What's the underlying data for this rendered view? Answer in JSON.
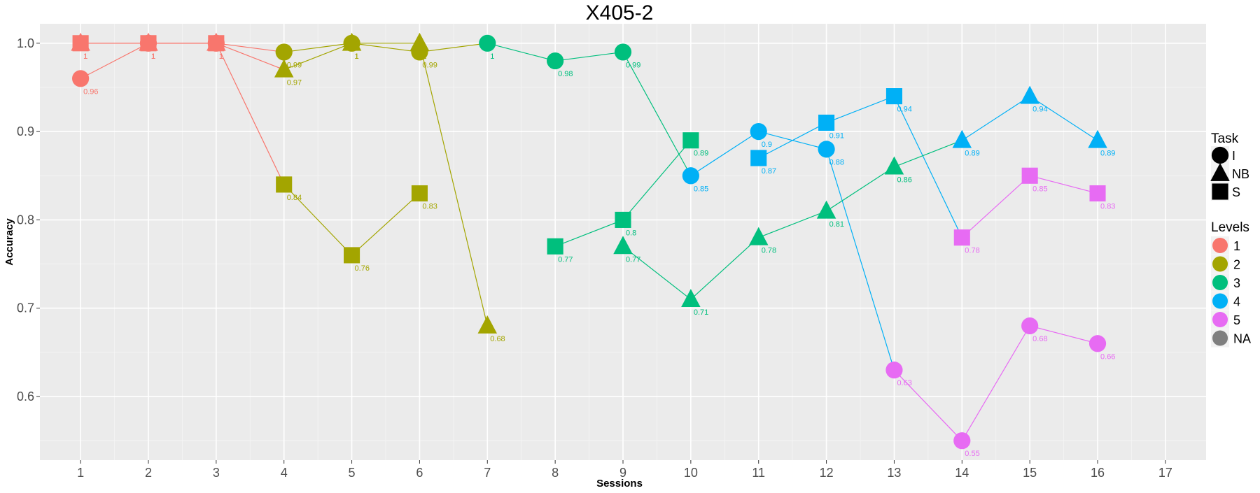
{
  "chart_data": {
    "type": "scatter",
    "title": "X405-2",
    "xlabel": "Sessions",
    "ylabel": "Accuracy",
    "x_ticks": [
      "1",
      "2",
      "3",
      "4",
      "5",
      "6",
      "7",
      "8",
      "9",
      "10",
      "11",
      "12",
      "13",
      "14",
      "15",
      "16",
      "17"
    ],
    "y_ticks": [
      "0.6",
      "0.7",
      "0.8",
      "0.9",
      "1.0"
    ],
    "xlim": [
      0.4,
      17.6
    ],
    "ylim": [
      0.528,
      1.022
    ],
    "grid": true,
    "legend_placement": "right",
    "legend": {
      "task_title": "Task",
      "task_items": [
        {
          "label": "I",
          "shape": "circle"
        },
        {
          "label": "NB",
          "shape": "triangle"
        },
        {
          "label": "S",
          "shape": "square"
        }
      ],
      "levels_title": "Levels",
      "level_items": [
        {
          "label": "1",
          "color": "#F8766D"
        },
        {
          "label": "2",
          "color": "#A3A500"
        },
        {
          "label": "3",
          "color": "#00BF7D"
        },
        {
          "label": "4",
          "color": "#00B0F6"
        },
        {
          "label": "5",
          "color": "#E76BF3"
        },
        {
          "label": "NA",
          "color": "#7F7F7F"
        }
      ]
    },
    "series": [
      {
        "task": "I",
        "level": "1",
        "color": "#F8766D",
        "shape": "circle",
        "points": [
          {
            "x": 1,
            "y": 0.96,
            "label": "0.96"
          },
          {
            "x": 2,
            "y": 1.0,
            "label": "1"
          },
          {
            "x": 3,
            "y": 1.0,
            "label": "1"
          }
        ]
      },
      {
        "task": "NB",
        "level": "1",
        "color": "#F8766D",
        "shape": "triangle",
        "points": [
          {
            "x": 1,
            "y": 1.0,
            "label": "1"
          },
          {
            "x": 2,
            "y": 1.0,
            "label": "1"
          },
          {
            "x": 3,
            "y": 1.0,
            "label": "1"
          }
        ]
      },
      {
        "task": "S",
        "level": "1",
        "color": "#F8766D",
        "shape": "square",
        "points": [
          {
            "x": 1,
            "y": 1.0,
            "label": "1"
          },
          {
            "x": 2,
            "y": 1.0,
            "label": "1"
          },
          {
            "x": 3,
            "y": 1.0,
            "label": "1"
          }
        ]
      },
      {
        "task": "I",
        "level": "2",
        "color": "#A3A500",
        "shape": "circle",
        "points": [
          {
            "x": 4,
            "y": 0.99,
            "label": "0.99"
          },
          {
            "x": 5,
            "y": 1.0,
            "label": "1"
          },
          {
            "x": 6,
            "y": 0.99,
            "label": "0.99"
          }
        ]
      },
      {
        "task": "NB",
        "level": "2",
        "color": "#A3A500",
        "shape": "triangle",
        "points": [
          {
            "x": 4,
            "y": 0.97,
            "label": "0.97"
          },
          {
            "x": 5,
            "y": 1.0,
            "label": "1"
          },
          {
            "x": 6,
            "y": 1.0,
            "label": "1"
          },
          {
            "x": 7,
            "y": 0.68,
            "label": "0.68"
          }
        ]
      },
      {
        "task": "S",
        "level": "2",
        "color": "#A3A500",
        "shape": "square",
        "points": [
          {
            "x": 4,
            "y": 0.84,
            "label": "0.84"
          },
          {
            "x": 5,
            "y": 0.76,
            "label": "0.76"
          },
          {
            "x": 6,
            "y": 0.83,
            "label": "0.83"
          }
        ]
      },
      {
        "task": "I",
        "level": "3",
        "color": "#00BF7D",
        "shape": "circle",
        "points": [
          {
            "x": 7,
            "y": 1.0,
            "label": "1"
          },
          {
            "x": 8,
            "y": 0.98,
            "label": "0.98"
          },
          {
            "x": 9,
            "y": 0.99,
            "label": "0.99"
          }
        ]
      },
      {
        "task": "NB",
        "level": "3",
        "color": "#00BF7D",
        "shape": "triangle",
        "points": [
          {
            "x": 9,
            "y": 0.77,
            "label": "0.77"
          },
          {
            "x": 10,
            "y": 0.71,
            "label": "0.71"
          },
          {
            "x": 11,
            "y": 0.78,
            "label": "0.78"
          },
          {
            "x": 12,
            "y": 0.81,
            "label": "0.81"
          },
          {
            "x": 13,
            "y": 0.86,
            "label": "0.86"
          }
        ]
      },
      {
        "task": "S",
        "level": "3",
        "color": "#00BF7D",
        "shape": "square",
        "points": [
          {
            "x": 8,
            "y": 0.77,
            "label": "0.77"
          },
          {
            "x": 9,
            "y": 0.8,
            "label": "0.8"
          },
          {
            "x": 10,
            "y": 0.89,
            "label": "0.89"
          }
        ]
      },
      {
        "task": "I",
        "level": "4",
        "color": "#00B0F6",
        "shape": "circle",
        "points": [
          {
            "x": 10,
            "y": 0.85,
            "label": "0.85"
          },
          {
            "x": 11,
            "y": 0.9,
            "label": "0.9"
          },
          {
            "x": 12,
            "y": 0.88,
            "label": "0.88"
          }
        ]
      },
      {
        "task": "NB",
        "level": "4",
        "color": "#00B0F6",
        "shape": "triangle",
        "points": [
          {
            "x": 14,
            "y": 0.89,
            "label": "0.89"
          },
          {
            "x": 15,
            "y": 0.94,
            "label": "0.94"
          },
          {
            "x": 16,
            "y": 0.89,
            "label": "0.89"
          }
        ]
      },
      {
        "task": "S",
        "level": "4",
        "color": "#00B0F6",
        "shape": "square",
        "points": [
          {
            "x": 11,
            "y": 0.87,
            "label": "0.87"
          },
          {
            "x": 12,
            "y": 0.91,
            "label": "0.91"
          },
          {
            "x": 13,
            "y": 0.94,
            "label": "0.94"
          }
        ]
      },
      {
        "task": "I",
        "level": "5",
        "color": "#E76BF3",
        "shape": "circle",
        "points": [
          {
            "x": 13,
            "y": 0.63,
            "label": "0.63"
          },
          {
            "x": 14,
            "y": 0.55,
            "label": "0.55"
          },
          {
            "x": 15,
            "y": 0.68,
            "label": "0.68"
          },
          {
            "x": 16,
            "y": 0.66,
            "label": "0.66"
          }
        ]
      },
      {
        "task": "S",
        "level": "5",
        "color": "#E76BF3",
        "shape": "square",
        "points": [
          {
            "x": 14,
            "y": 0.78,
            "label": "0.78"
          },
          {
            "x": 15,
            "y": 0.85,
            "label": "0.85"
          },
          {
            "x": 16,
            "y": 0.83,
            "label": "0.83"
          }
        ]
      }
    ],
    "connectors": [
      {
        "color": "#F8766D",
        "x": [
          3,
          4
        ],
        "y": [
          1.0,
          0.84
        ]
      },
      {
        "color": "#F8766D",
        "x": [
          3,
          4
        ],
        "y": [
          1.0,
          0.99
        ]
      },
      {
        "color": "#F8766D",
        "x": [
          3,
          4
        ],
        "y": [
          1.0,
          0.97
        ]
      },
      {
        "color": "#A3A500",
        "x": [
          6,
          7
        ],
        "y": [
          0.99,
          1.0
        ]
      },
      {
        "color": "#00BF7D",
        "x": [
          9,
          10
        ],
        "y": [
          0.99,
          0.85
        ]
      },
      {
        "color": "#00B0F6",
        "x": [
          12,
          13
        ],
        "y": [
          0.88,
          0.63
        ]
      },
      {
        "color": "#00B0F6",
        "x": [
          13,
          14
        ],
        "y": [
          0.94,
          0.78
        ]
      },
      {
        "color": "#00BF7D",
        "x": [
          13,
          14
        ],
        "y": [
          0.86,
          0.89
        ]
      }
    ]
  }
}
